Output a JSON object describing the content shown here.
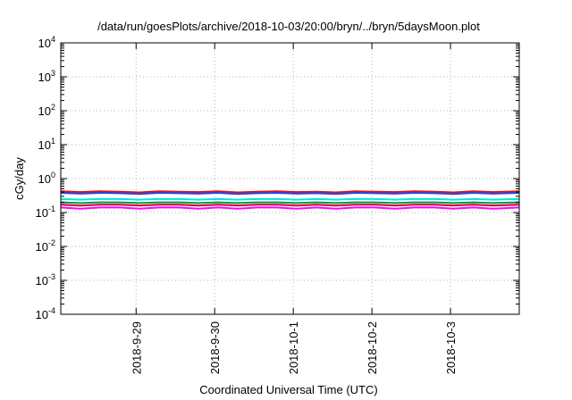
{
  "chart_data": {
    "type": "line",
    "title": "/data/run/goesPlots/archive/2018-10-03/20:00/bryn/../bryn/5daysMoon.plot",
    "xlabel": "Coordinated Universal Time (UTC)",
    "ylabel": "cGy/day",
    "yscale": "log",
    "ylim": [
      0.0001,
      10000
    ],
    "xlim": [
      "2018-09-28 01:00",
      "2018-10-03 21:00"
    ],
    "grid": true,
    "xticks": [
      {
        "x": "2018-09-29 00:00",
        "label": "2018-9-29"
      },
      {
        "x": "2018-09-30 00:00",
        "label": "2018-9-30"
      },
      {
        "x": "2018-10-01 00:00",
        "label": "2018-10-1"
      },
      {
        "x": "2018-10-02 00:00",
        "label": "2018-10-2"
      },
      {
        "x": "2018-10-03 00:00",
        "label": "2018-10-3"
      }
    ],
    "yticks": [
      {
        "value": 0.0001,
        "base": "10",
        "exp": "-4"
      },
      {
        "value": 0.001,
        "base": "10",
        "exp": "-3"
      },
      {
        "value": 0.01,
        "base": "10",
        "exp": "-2"
      },
      {
        "value": 0.1,
        "base": "10",
        "exp": "-1"
      },
      {
        "value": 1,
        "base": "10",
        "exp": "0"
      },
      {
        "value": 10,
        "base": "10",
        "exp": "1"
      },
      {
        "value": 100,
        "base": "10",
        "exp": "2"
      },
      {
        "value": 1000,
        "base": "10",
        "exp": "3"
      },
      {
        "value": 10000,
        "base": "10",
        "exp": "4"
      }
    ],
    "series": [
      {
        "color": "#ff00ff",
        "x": [
          "2018-09-28 01:00",
          "2018-09-28 07:00",
          "2018-09-28 13:00",
          "2018-09-28 19:00",
          "2018-09-29 01:00",
          "2018-09-29 07:00",
          "2018-09-29 13:00",
          "2018-09-29 19:00",
          "2018-09-30 01:00",
          "2018-09-30 07:00",
          "2018-09-30 13:00",
          "2018-09-30 19:00",
          "2018-10-01 01:00",
          "2018-10-01 07:00",
          "2018-10-01 13:00",
          "2018-10-01 19:00",
          "2018-10-02 01:00",
          "2018-10-02 07:00",
          "2018-10-02 13:00",
          "2018-10-02 19:00",
          "2018-10-03 01:00",
          "2018-10-03 07:00",
          "2018-10-03 13:00",
          "2018-10-03 21:00"
        ],
        "values": [
          0.14,
          0.13,
          0.14,
          0.14,
          0.13,
          0.14,
          0.14,
          0.13,
          0.14,
          0.13,
          0.14,
          0.14,
          0.13,
          0.14,
          0.13,
          0.14,
          0.14,
          0.13,
          0.14,
          0.14,
          0.13,
          0.14,
          0.13,
          0.14
        ]
      },
      {
        "color": "#cc0033",
        "x": [
          "2018-09-28 01:00",
          "2018-09-28 07:00",
          "2018-09-28 13:00",
          "2018-09-28 19:00",
          "2018-09-29 01:00",
          "2018-09-29 07:00",
          "2018-09-29 13:00",
          "2018-09-29 19:00",
          "2018-09-30 01:00",
          "2018-09-30 07:00",
          "2018-09-30 13:00",
          "2018-09-30 19:00",
          "2018-10-01 01:00",
          "2018-10-01 07:00",
          "2018-10-01 13:00",
          "2018-10-01 19:00",
          "2018-10-02 01:00",
          "2018-10-02 07:00",
          "2018-10-02 13:00",
          "2018-10-02 19:00",
          "2018-10-03 01:00",
          "2018-10-03 07:00",
          "2018-10-03 13:00",
          "2018-10-03 21:00"
        ],
        "values": [
          0.17,
          0.16,
          0.17,
          0.17,
          0.16,
          0.17,
          0.17,
          0.16,
          0.17,
          0.16,
          0.17,
          0.17,
          0.16,
          0.17,
          0.16,
          0.17,
          0.17,
          0.16,
          0.17,
          0.17,
          0.16,
          0.17,
          0.16,
          0.17
        ]
      },
      {
        "color": "#009944",
        "x": [
          "2018-09-28 01:00",
          "2018-09-28 07:00",
          "2018-09-28 13:00",
          "2018-09-28 19:00",
          "2018-09-29 01:00",
          "2018-09-29 07:00",
          "2018-09-29 13:00",
          "2018-09-29 19:00",
          "2018-09-30 01:00",
          "2018-09-30 07:00",
          "2018-09-30 13:00",
          "2018-09-30 19:00",
          "2018-10-01 01:00",
          "2018-10-01 07:00",
          "2018-10-01 13:00",
          "2018-10-01 19:00",
          "2018-10-02 01:00",
          "2018-10-02 07:00",
          "2018-10-02 13:00",
          "2018-10-02 19:00",
          "2018-10-03 01:00",
          "2018-10-03 07:00",
          "2018-10-03 13:00",
          "2018-10-03 21:00"
        ],
        "values": [
          0.2,
          0.19,
          0.2,
          0.2,
          0.19,
          0.2,
          0.2,
          0.19,
          0.2,
          0.19,
          0.2,
          0.2,
          0.19,
          0.2,
          0.19,
          0.2,
          0.2,
          0.19,
          0.2,
          0.2,
          0.19,
          0.2,
          0.19,
          0.2
        ]
      },
      {
        "color": "#00e5e5",
        "x": [
          "2018-09-28 01:00",
          "2018-09-28 07:00",
          "2018-09-28 13:00",
          "2018-09-28 19:00",
          "2018-09-29 01:00",
          "2018-09-29 07:00",
          "2018-09-29 13:00",
          "2018-09-29 19:00",
          "2018-09-30 01:00",
          "2018-09-30 07:00",
          "2018-09-30 13:00",
          "2018-09-30 19:00",
          "2018-10-01 01:00",
          "2018-10-01 07:00",
          "2018-10-01 13:00",
          "2018-10-01 19:00",
          "2018-10-02 01:00",
          "2018-10-02 07:00",
          "2018-10-02 13:00",
          "2018-10-02 19:00",
          "2018-10-03 01:00",
          "2018-10-03 07:00",
          "2018-10-03 13:00",
          "2018-10-03 21:00"
        ],
        "values": [
          0.25,
          0.24,
          0.25,
          0.25,
          0.24,
          0.25,
          0.25,
          0.24,
          0.25,
          0.24,
          0.25,
          0.25,
          0.24,
          0.25,
          0.24,
          0.25,
          0.25,
          0.24,
          0.25,
          0.25,
          0.24,
          0.25,
          0.24,
          0.25
        ]
      },
      {
        "color": "#dd1111",
        "x": [
          "2018-09-28 01:00",
          "2018-09-28 07:00",
          "2018-09-28 13:00",
          "2018-09-28 19:00",
          "2018-09-29 01:00",
          "2018-09-29 07:00",
          "2018-09-29 13:00",
          "2018-09-29 19:00",
          "2018-09-30 01:00",
          "2018-09-30 07:00",
          "2018-09-30 13:00",
          "2018-09-30 19:00",
          "2018-10-01 01:00",
          "2018-10-01 07:00",
          "2018-10-01 13:00",
          "2018-10-01 19:00",
          "2018-10-02 01:00",
          "2018-10-02 07:00",
          "2018-10-02 13:00",
          "2018-10-02 19:00",
          "2018-10-03 01:00",
          "2018-10-03 07:00",
          "2018-10-03 13:00",
          "2018-10-03 21:00"
        ],
        "values": [
          0.42,
          0.4,
          0.42,
          0.41,
          0.39,
          0.42,
          0.41,
          0.4,
          0.42,
          0.39,
          0.41,
          0.42,
          0.4,
          0.41,
          0.39,
          0.42,
          0.41,
          0.4,
          0.42,
          0.41,
          0.39,
          0.42,
          0.4,
          0.42
        ]
      },
      {
        "color": "#2244ee",
        "x": [
          "2018-09-28 01:00",
          "2018-09-28 07:00",
          "2018-09-28 13:00",
          "2018-09-28 19:00",
          "2018-09-29 01:00",
          "2018-09-29 07:00",
          "2018-09-29 13:00",
          "2018-09-29 19:00",
          "2018-09-30 01:00",
          "2018-09-30 07:00",
          "2018-09-30 13:00",
          "2018-09-30 19:00",
          "2018-10-01 01:00",
          "2018-10-01 07:00",
          "2018-10-01 13:00",
          "2018-10-01 19:00",
          "2018-10-02 01:00",
          "2018-10-02 07:00",
          "2018-10-02 13:00",
          "2018-10-02 19:00",
          "2018-10-03 01:00",
          "2018-10-03 07:00",
          "2018-10-03 13:00",
          "2018-10-03 21:00"
        ],
        "values": [
          0.38,
          0.36,
          0.38,
          0.37,
          0.35,
          0.38,
          0.37,
          0.36,
          0.38,
          0.35,
          0.37,
          0.38,
          0.36,
          0.37,
          0.35,
          0.38,
          0.37,
          0.36,
          0.38,
          0.37,
          0.35,
          0.38,
          0.36,
          0.38
        ]
      }
    ]
  }
}
